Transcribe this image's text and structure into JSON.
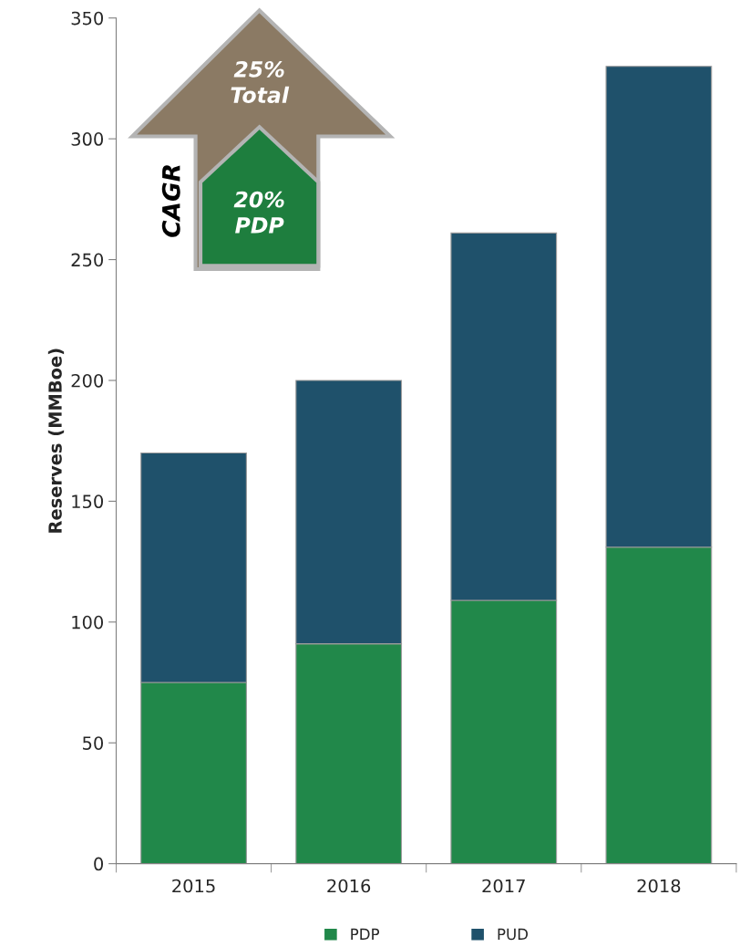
{
  "chart_data": {
    "type": "bar",
    "stacked": true,
    "ylabel": "Reserves (MMBoe)",
    "categories": [
      "2015",
      "2016",
      "2017",
      "2018"
    ],
    "series": [
      {
        "name": "PDP",
        "color": "#21884a",
        "values": [
          75,
          91,
          109,
          131
        ]
      },
      {
        "name": "PUD",
        "color": "#1f516b",
        "values": [
          95,
          109,
          152,
          199
        ]
      }
    ],
    "ylim": [
      0,
      350
    ],
    "yticks": [
      0,
      50,
      100,
      150,
      200,
      250,
      300,
      350
    ],
    "grid": false,
    "legend": "bottom",
    "annotations": [
      "25%\nTotal",
      "20%\nPDP",
      "CAGR"
    ]
  }
}
